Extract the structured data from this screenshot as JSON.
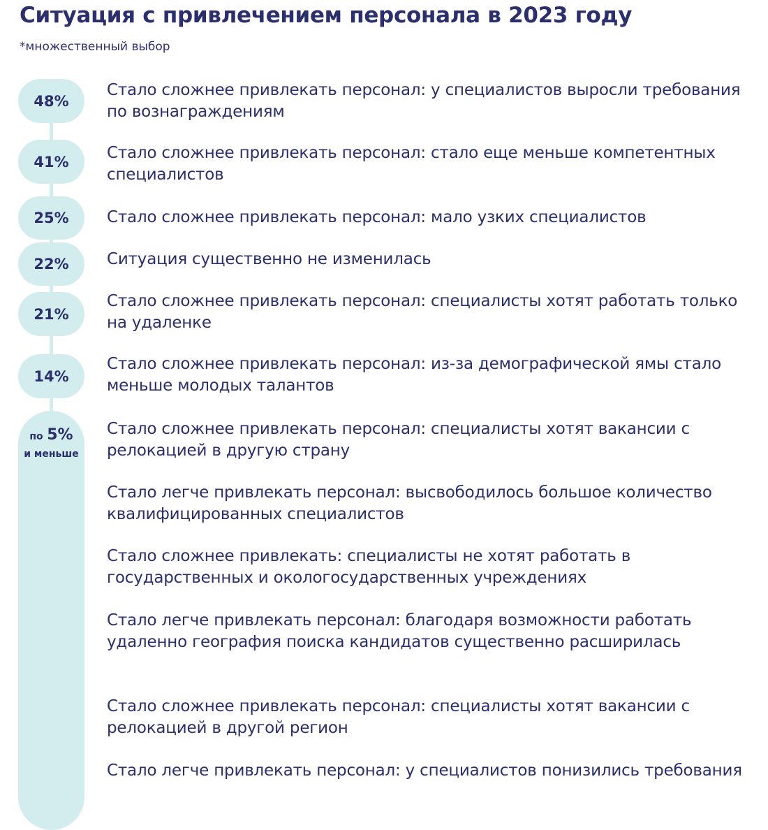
{
  "chart_data": {
    "type": "table",
    "title": "Ситуация с привлечением персонала в 2023 году",
    "subtitle": "*множественный выбор",
    "rows": [
      {
        "value": 48,
        "value_label": "48%",
        "label": "Стало сложнее привлекать персонал: у специалистов выросли требования по вознаграждениям"
      },
      {
        "value": 41,
        "value_label": "41%",
        "label": "Стало сложнее привлекать персонал: стало еще меньше компетентных специалистов"
      },
      {
        "value": 25,
        "value_label": "25%",
        "label": "Стало сложнее привлекать персонал: мало узких специалистов"
      },
      {
        "value": 22,
        "value_label": "22%",
        "label": "Ситуация существенно не изменилась"
      },
      {
        "value": 21,
        "value_label": "21%",
        "label": "Стало сложнее привлекать персонал: специалисты хотят работать только на удаленке"
      },
      {
        "value": 14,
        "value_label": "14%",
        "label": "Стало сложнее привлекать персонал: из-за демографической ямы стало меньше молодых талантов"
      }
    ],
    "group": {
      "prefix": "по",
      "value": 5,
      "value_label": "5%",
      "suffix": "и меньше",
      "items": [
        "Стало сложнее привлекать персонал: специалисты хотят вакансии с релокацией в другую страну",
        "Стало легче привлекать персонал: высвободилось большое количество квалифицированных специалистов",
        "Стало сложнее привлекать: специалисты не хотят работать в государственных и окологосударственных учреждениях",
        "Стало легче привлекать персонал: благодаря возможности работать удаленно география поиска кандидатов существенно расширилась",
        "Стало сложнее привлекать персонал: специалисты хотят вакансии с релокацией в другой регион",
        "Стало легче привлекать персонал: у специалистов понизились требования"
      ]
    }
  },
  "colors": {
    "text": "#2b2f6e",
    "pill": "#d3edef"
  }
}
